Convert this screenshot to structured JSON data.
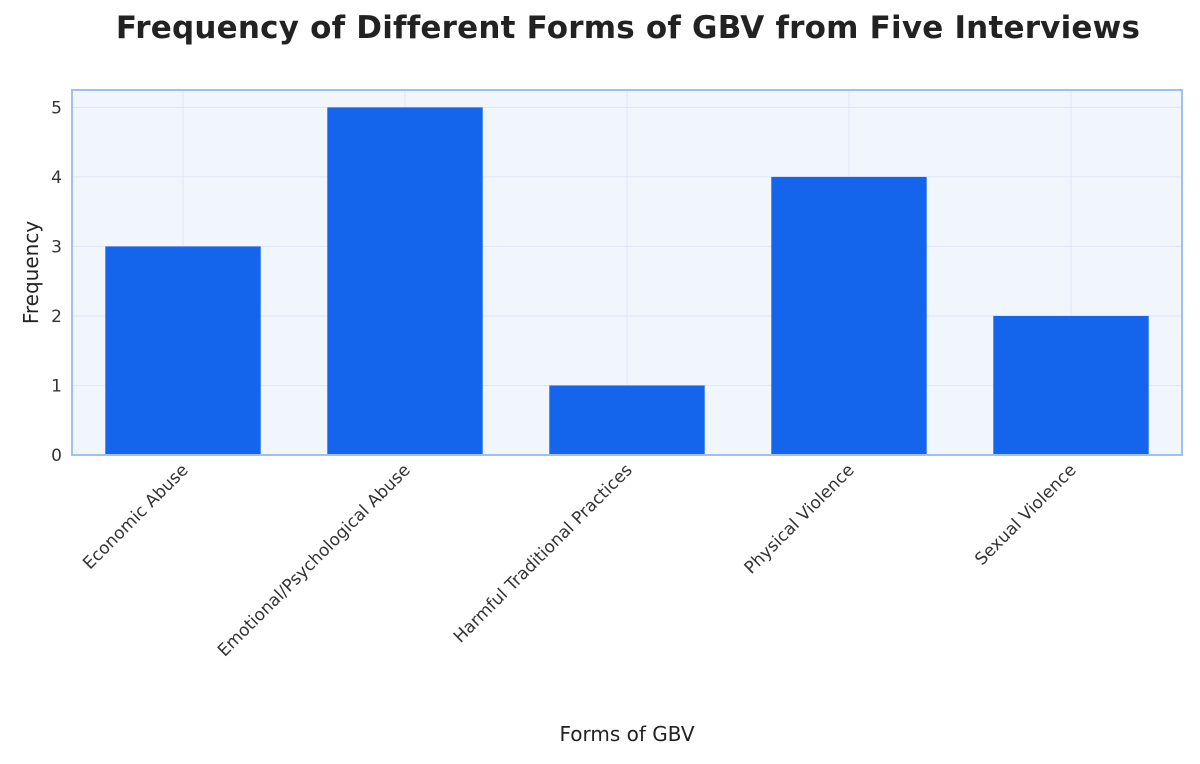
{
  "chart_data": {
    "type": "bar",
    "title": "Frequency of Different Forms of GBV from Five Interviews",
    "xlabel": "Forms of GBV",
    "ylabel": "Frequency",
    "categories": [
      "Economic Abuse",
      "Emotional/Psychological Abuse",
      "Harmful Traditional Practices",
      "Physical Violence",
      "Sexual Violence"
    ],
    "values": [
      3,
      5,
      1,
      4,
      2
    ],
    "ylim": [
      0,
      5.25
    ],
    "yticks": [
      0,
      1,
      2,
      3,
      4,
      5
    ],
    "grid": true,
    "legend": "none",
    "colors": {
      "bar": "#1565ec",
      "plot_background": "#f1f6fd",
      "frame": "#9ec0f3",
      "grid": "#dfe6f5"
    }
  }
}
